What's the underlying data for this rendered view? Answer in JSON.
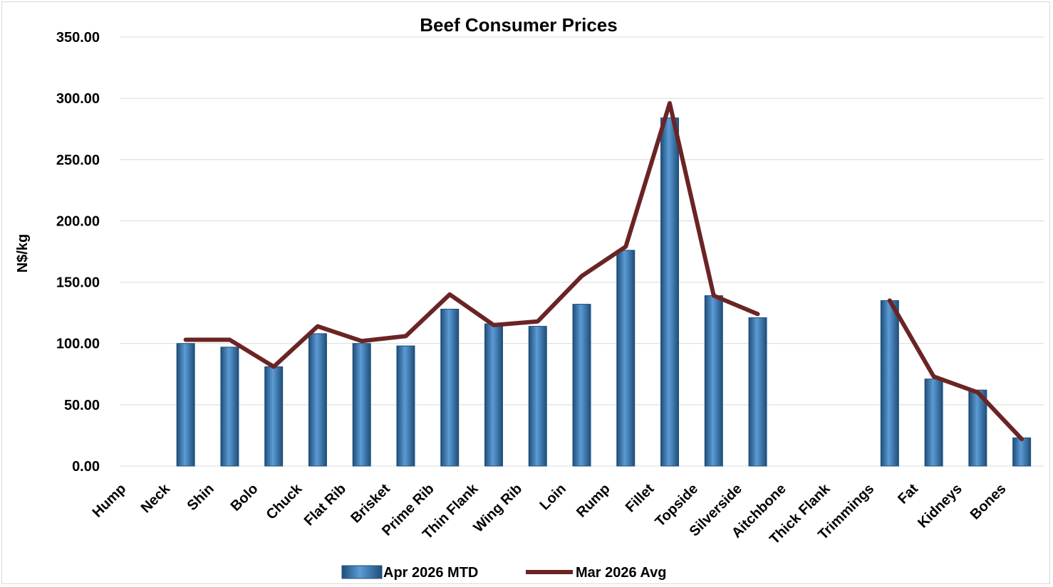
{
  "chart_data": {
    "type": "bar",
    "title": "Beef Consumer Prices",
    "xlabel": "",
    "ylabel": "N$/kg",
    "ylim": [
      0,
      350
    ],
    "yticks": [
      "0.00",
      "50.00",
      "100.00",
      "150.00",
      "200.00",
      "250.00",
      "300.00",
      "350.00"
    ],
    "grid": true,
    "legend_position": "bottom",
    "categories": [
      "Hump",
      "Neck",
      "Shin",
      "Bolo",
      "Chuck",
      "Flat Rib",
      "Brisket",
      "Prime Rib",
      "Thin Flank",
      "Wing Rib",
      "Loin",
      "Rump",
      "Fillet",
      "Topside",
      "Silverside",
      "Aitchbone",
      "Thick Flank",
      "Trimmings",
      "Fat",
      "Kidneys",
      "Bones"
    ],
    "series": [
      {
        "name": "Apr 2026 MTD",
        "type": "bar",
        "color": "#2e75b6",
        "values": [
          null,
          100,
          97,
          81,
          108,
          100,
          98,
          128,
          116,
          114,
          132,
          176,
          284,
          139,
          121,
          null,
          null,
          135,
          71,
          62,
          23
        ]
      },
      {
        "name": "Mar 2026 Avg",
        "type": "line",
        "color": "#6b2424",
        "values": [
          null,
          103,
          103,
          81,
          114,
          102,
          106,
          140,
          115,
          118,
          155,
          179,
          296,
          139,
          124,
          null,
          null,
          135,
          73,
          60,
          22
        ]
      }
    ]
  }
}
